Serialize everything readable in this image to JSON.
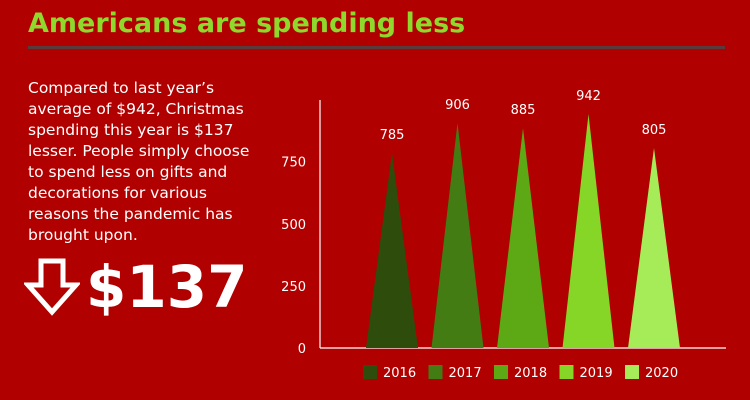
{
  "header": {
    "title": "Americans are spending less"
  },
  "description": "Compared to last year’s average of $942, Christmas spending this year is $137 lesser. People simply choose to spend less on gifts and decorations for various reasons the pandemic has brought upon.",
  "highlight": {
    "value": "$137",
    "icon": "down-arrow-icon"
  },
  "colors": {
    "background": "#b00000",
    "title": "#8fd82c",
    "series": [
      "#2e4c0b",
      "#427c12",
      "#5da915",
      "#86d628",
      "#a6ec58"
    ]
  },
  "chart_data": {
    "type": "bar",
    "title": "",
    "xlabel": "",
    "ylabel": "",
    "categories": [
      "2016",
      "2017",
      "2018",
      "2019",
      "2020"
    ],
    "values": [
      785,
      906,
      885,
      942,
      805
    ],
    "y_ticks": [
      0,
      250,
      500,
      750
    ],
    "ylim": [
      0,
      942
    ],
    "grid": false,
    "legend_position": "bottom"
  }
}
